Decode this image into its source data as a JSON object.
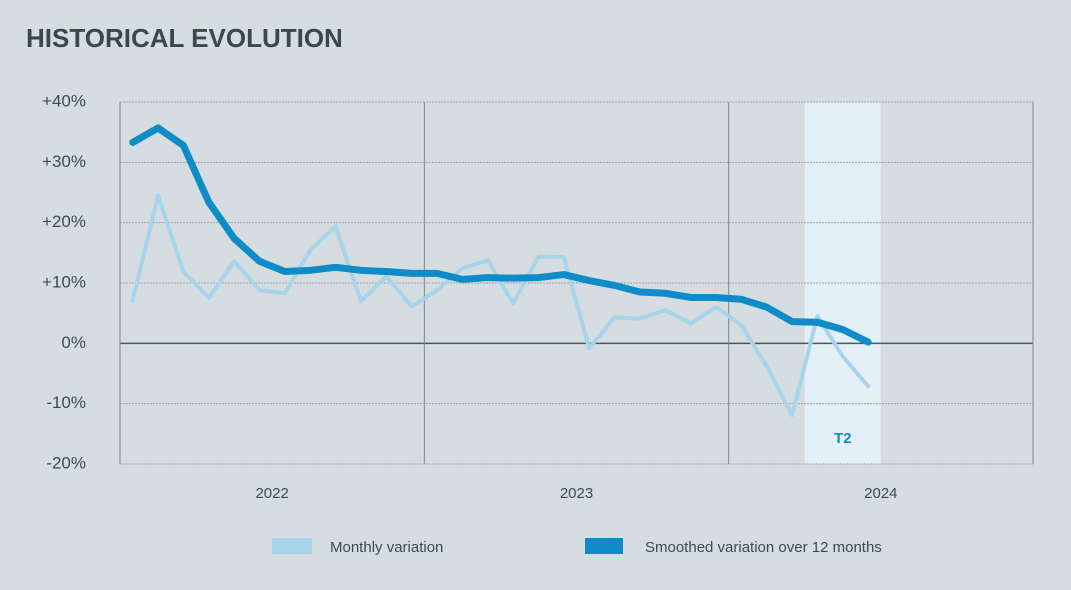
{
  "chart_data": {
    "type": "line",
    "title": "HISTORICAL EVOLUTION",
    "years": [
      "2022",
      "2023",
      "2024"
    ],
    "categories": [
      null,
      null,
      null,
      null,
      null,
      null,
      null,
      null,
      null,
      null,
      null,
      null,
      null,
      null,
      null,
      null,
      null,
      null,
      null,
      null,
      null,
      null,
      null,
      null,
      null,
      null,
      null,
      null,
      null,
      null
    ],
    "series": [
      {
        "name": "Monthly variation",
        "color": "#a6d4ea",
        "values": [
          7.1,
          24.5,
          11.9,
          7.5,
          13.6,
          8.8,
          8.3,
          15.4,
          19.4,
          7.0,
          11.1,
          6.1,
          8.8,
          12.4,
          13.8,
          6.6,
          14.4,
          14.3,
          -0.8,
          4.3,
          4.1,
          5.5,
          3.3,
          6.0,
          3.0,
          -3.8,
          -11.9,
          4.5,
          -2.2,
          -7.1
        ]
      },
      {
        "name": "Smoothed variation over 12 months",
        "color": "#0f8cc8",
        "values": [
          33.3,
          35.7,
          32.8,
          23.4,
          17.4,
          13.6,
          11.9,
          12.1,
          12.6,
          12.1,
          11.9,
          11.6,
          11.6,
          10.6,
          10.9,
          10.8,
          10.9,
          11.4,
          10.4,
          9.6,
          8.5,
          8.3,
          7.6,
          7.6,
          7.3,
          6.0,
          3.6,
          3.5,
          2.3,
          0.2
        ]
      }
    ],
    "highlight": {
      "label": "T2",
      "start": 27,
      "end": 29,
      "color": "#e3f0f7"
    },
    "ylim": [
      -20,
      40
    ],
    "yticks": [
      {
        "value": -20,
        "label": "-20%"
      },
      {
        "value": -10,
        "label": "-10%"
      },
      {
        "value": 0,
        "label": "0%"
      },
      {
        "value": 10,
        "label": "+10%"
      },
      {
        "value": 20,
        "label": "+20%"
      },
      {
        "value": 30,
        "label": "+30%"
      },
      {
        "value": 40,
        "label": "+40%"
      }
    ],
    "grid": true
  }
}
